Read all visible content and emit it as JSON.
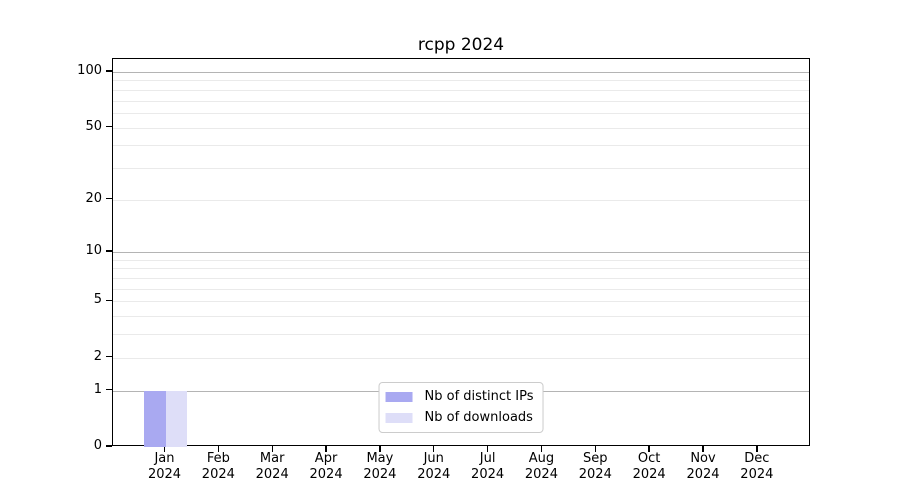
{
  "chart_data": {
    "type": "bar",
    "title": "rcpp 2024",
    "categories": [
      "Jan 2024",
      "Feb 2024",
      "Mar 2024",
      "Apr 2024",
      "May 2024",
      "Jun 2024",
      "Jul 2024",
      "Aug 2024",
      "Sep 2024",
      "Oct 2024",
      "Nov 2024",
      "Dec 2024"
    ],
    "x_tick_line1": [
      "Jan",
      "Feb",
      "Mar",
      "Apr",
      "May",
      "Jun",
      "Jul",
      "Aug",
      "Sep",
      "Oct",
      "Nov",
      "Dec"
    ],
    "x_tick_line2": "2024",
    "series": [
      {
        "name": "Nb of distinct IPs",
        "color": "#a9a9f1",
        "values": [
          1,
          0,
          0,
          0,
          0,
          0,
          0,
          0,
          0,
          0,
          0,
          0
        ]
      },
      {
        "name": "Nb of downloads",
        "color": "#dedef8",
        "values": [
          1,
          0,
          0,
          0,
          0,
          0,
          0,
          0,
          0,
          0,
          0,
          0
        ]
      }
    ],
    "yscale": "log1p",
    "ylabel": "",
    "xlabel": "",
    "ylim": [
      0,
      117
    ],
    "y_ticks": [
      0,
      1,
      2,
      5,
      10,
      20,
      50,
      100
    ],
    "major_gridlines": [
      1,
      10,
      100
    ],
    "minor_gridlines": [
      2,
      3,
      4,
      5,
      6,
      7,
      8,
      9,
      20,
      30,
      40,
      50,
      60,
      70,
      80,
      90
    ],
    "legend": {
      "position": "lower center"
    },
    "colors": {
      "axis": "#000000",
      "major_grid": "#b4b4b4",
      "minor_grid": "#eaeaea",
      "background": "#ffffff"
    }
  }
}
